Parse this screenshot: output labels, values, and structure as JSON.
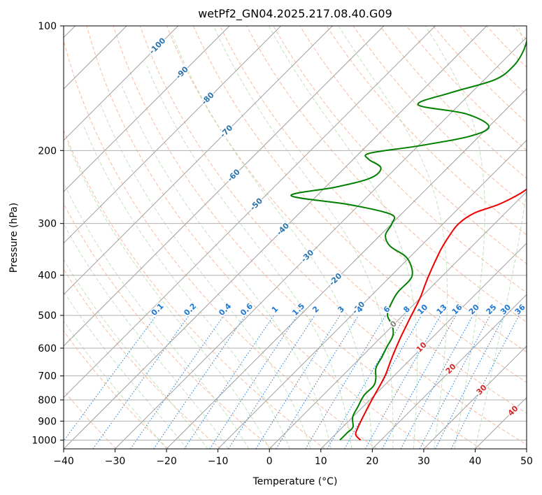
{
  "chart_data": {
    "type": "line",
    "title": "wetPf2_GN04.2025.217.08.40.G09",
    "xlabel": "Temperature (°C)",
    "ylabel": "Pressure (hPa)",
    "xlim": [
      -40,
      50
    ],
    "ylim": [
      1050,
      100
    ],
    "y_scale": "log",
    "skew": 45,
    "grid": true,
    "x_ticks": [
      -40,
      -30,
      -20,
      -10,
      0,
      10,
      20,
      30,
      40,
      50
    ],
    "x_tick_labels": [
      "−40",
      "−30",
      "−20",
      "−10",
      "0",
      "10",
      "20",
      "30",
      "40",
      "50"
    ],
    "y_ticks": [
      100,
      200,
      300,
      400,
      500,
      600,
      700,
      800,
      900,
      1000
    ],
    "y_tick_labels": [
      "100",
      "200",
      "300",
      "400",
      "500",
      "600",
      "700",
      "800",
      "900",
      "1000"
    ],
    "colors": {
      "temperature": "#ee0000",
      "dewpoint": "#008000",
      "grid": "#b0b0b0",
      "isotherm": "#a0a0a0",
      "dry_adiabat": "#f4a582",
      "moist_adiabat": "#a6d9a0",
      "mixing_ratio": "#1e78d2",
      "temp_label": "#2a74ae",
      "adiabat_label": "#d62728"
    },
    "series": [
      {
        "name": "",
        "points": [
          [
            16,
            1000
          ],
          [
            14,
            970
          ],
          [
            13,
            930
          ],
          [
            12,
            880
          ],
          [
            11,
            830
          ],
          [
            10,
            780
          ],
          [
            9,
            730
          ],
          [
            8,
            690
          ],
          [
            6,
            630
          ],
          [
            4,
            570
          ],
          [
            2,
            510
          ],
          [
            0,
            455
          ],
          [
            -2,
            415
          ],
          [
            -3.5,
            385
          ],
          [
            -4.5,
            365
          ],
          [
            -5.5,
            345
          ],
          [
            -6.5,
            320
          ],
          [
            -7,
            300
          ],
          [
            -6,
            283
          ],
          [
            -3,
            270
          ],
          [
            -1,
            255
          ],
          [
            0,
            240
          ],
          [
            1,
            225
          ],
          [
            2,
            210
          ],
          [
            3,
            198
          ],
          [
            4,
            185
          ],
          [
            5,
            170
          ],
          [
            7,
            157
          ],
          [
            7.5,
            145
          ],
          [
            8,
            133
          ],
          [
            10,
            120
          ],
          [
            12,
            110
          ],
          [
            15,
            100
          ]
        ]
      },
      {
        "name": "",
        "points": [
          [
            12,
            1000
          ],
          [
            12,
            960
          ],
          [
            12,
            930
          ],
          [
            10,
            880
          ],
          [
            9,
            830
          ],
          [
            8,
            780
          ],
          [
            8,
            740
          ],
          [
            7,
            710
          ],
          [
            5,
            670
          ],
          [
            4,
            630
          ],
          [
            3,
            595
          ],
          [
            2,
            560
          ],
          [
            0,
            530
          ],
          [
            -3,
            500
          ],
          [
            -4.5,
            470
          ],
          [
            -5.5,
            440
          ],
          [
            -5.5,
            415
          ],
          [
            -6,
            400
          ],
          [
            -8,
            380
          ],
          [
            -11,
            360
          ],
          [
            -16,
            340
          ],
          [
            -19,
            320
          ],
          [
            -20,
            300
          ],
          [
            -22,
            285
          ],
          [
            -32,
            270
          ],
          [
            -45,
            257
          ],
          [
            -38,
            245
          ],
          [
            -33,
            233
          ],
          [
            -33,
            220
          ],
          [
            -37,
            210
          ],
          [
            -38,
            203
          ],
          [
            -30,
            195
          ],
          [
            -22,
            185
          ],
          [
            -20,
            175
          ],
          [
            -27,
            163
          ],
          [
            -38,
            155
          ],
          [
            -34,
            145
          ],
          [
            -28,
            135
          ],
          [
            -27,
            125
          ],
          [
            -28,
            115
          ],
          [
            -30,
            106
          ],
          [
            -32,
            100
          ]
        ]
      }
    ],
    "isotherm_labels": [
      {
        "value": -100,
        "text": "-100"
      },
      {
        "value": -90,
        "text": "-90"
      },
      {
        "value": -80,
        "text": "-80"
      },
      {
        "value": -70,
        "text": "-70"
      },
      {
        "value": -60,
        "text": "-60"
      },
      {
        "value": -50,
        "text": "-50"
      },
      {
        "value": -40,
        "text": "-40"
      },
      {
        "value": -30,
        "text": "-30"
      },
      {
        "value": -20,
        "text": "-20"
      },
      {
        "value": -10,
        "text": "-10"
      }
    ],
    "mixing_ratio_labels": [
      {
        "value": 0.1,
        "text": "0.1"
      },
      {
        "value": 0.2,
        "text": "0.2"
      },
      {
        "value": 0.4,
        "text": "0.4"
      },
      {
        "value": 0.6,
        "text": "0.6"
      },
      {
        "value": 1,
        "text": "1"
      },
      {
        "value": 1.5,
        "text": "1.5"
      },
      {
        "value": 2,
        "text": "2"
      },
      {
        "value": 3,
        "text": "3"
      },
      {
        "value": 4,
        "text": "4"
      },
      {
        "value": 6,
        "text": "6"
      },
      {
        "value": 8,
        "text": "8"
      },
      {
        "value": 10,
        "text": "10"
      },
      {
        "value": 13,
        "text": "13"
      },
      {
        "value": 16,
        "text": "16"
      },
      {
        "value": 20,
        "text": "20"
      },
      {
        "value": 25,
        "text": "25"
      },
      {
        "value": 30,
        "text": "30"
      },
      {
        "value": 36,
        "text": "36"
      }
    ],
    "adiabat_labels": [
      {
        "value": 0,
        "text": "0"
      },
      {
        "value": 10,
        "text": "10"
      },
      {
        "value": 20,
        "text": "20"
      },
      {
        "value": 30,
        "text": "30"
      },
      {
        "value": 40,
        "text": "40"
      }
    ]
  }
}
